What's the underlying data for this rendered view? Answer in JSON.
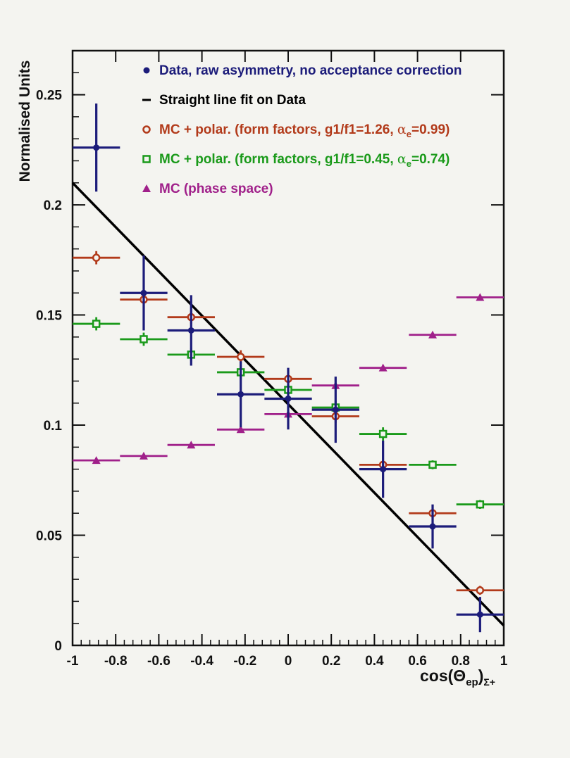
{
  "chart_data": {
    "type": "scatter",
    "title": "",
    "xlabel": "cos(Θ",
    "xlabel_sub": "ep",
    "xlabel_close": ")",
    "xlabel_sub2": "Σ+",
    "ylabel": "Normalised Units",
    "xlim": [
      -1,
      1
    ],
    "ylim": [
      0,
      0.27
    ],
    "x_ticks": [
      -1,
      -0.8,
      -0.6,
      -0.4,
      -0.2,
      0,
      0.2,
      0.4,
      0.6,
      0.8,
      1
    ],
    "x_tick_labels": [
      "-1",
      "-0.8",
      "-0.6",
      "-0.4",
      "-0.2",
      "0",
      "0.2",
      "0.4",
      "0.6",
      "0.8",
      "1"
    ],
    "y_ticks": [
      0,
      0.05,
      0.1,
      0.15,
      0.2,
      0.25
    ],
    "y_tick_labels": [
      "0",
      "0.05",
      "0.1",
      "0.15",
      "0.2",
      "0.25"
    ],
    "legend_position": "top-right",
    "legend": [
      {
        "marker": "dot",
        "color": "#1c1c7a",
        "text": "Data, raw asymmetry, no acceptance correction"
      },
      {
        "marker": "line",
        "color": "#000000",
        "text": "Straight line fit on Data"
      },
      {
        "marker": "circle",
        "color": "#b23a1a",
        "text_pre": "MC + polar. (form factors, g1/f1=1.26, ",
        "text_alpha": "α",
        "text_sub": "e",
        "text_post": "=0.99)"
      },
      {
        "marker": "square",
        "color": "#1a9a1a",
        "text_pre": "MC + polar. (form factors, g1/f1=0.45, ",
        "text_alpha": "α",
        "text_sub": "e",
        "text_post": "=0.74)"
      },
      {
        "marker": "triangle",
        "color": "#a0208a",
        "text": "MC (phase space)"
      }
    ],
    "series": [
      {
        "name": "Data, raw asymmetry, no acceptance correction",
        "color": "#1c1c7a",
        "marker": "dot",
        "x": [
          -0.89,
          -0.67,
          -0.45,
          -0.22,
          0.0,
          0.22,
          0.44,
          0.67,
          0.89
        ],
        "xerr": 0.11,
        "y": [
          0.226,
          0.16,
          0.143,
          0.114,
          0.112,
          0.107,
          0.08,
          0.054,
          0.014
        ],
        "yerr": [
          0.02,
          0.017,
          0.016,
          0.015,
          0.014,
          0.015,
          0.013,
          0.01,
          0.008
        ]
      },
      {
        "name": "MC + polar. (form factors, g1/f1=1.26, αe=0.99)",
        "color": "#b23a1a",
        "marker": "circle",
        "x": [
          -0.89,
          -0.67,
          -0.45,
          -0.22,
          0.0,
          0.22,
          0.44,
          0.67,
          0.89
        ],
        "xerr": 0.11,
        "y": [
          0.176,
          0.157,
          0.149,
          0.131,
          0.121,
          0.104,
          0.082,
          0.06,
          0.025
        ],
        "yerr": [
          0.003,
          0.003,
          0.003,
          0.003,
          0.003,
          0.003,
          0.002,
          0.002,
          0.002
        ]
      },
      {
        "name": "MC + polar. (form factors, g1/f1=0.45, αe=0.74)",
        "color": "#1a9a1a",
        "marker": "square",
        "x": [
          -0.89,
          -0.67,
          -0.45,
          -0.22,
          0.0,
          0.22,
          0.44,
          0.67,
          0.89
        ],
        "xerr": 0.11,
        "y": [
          0.146,
          0.139,
          0.132,
          0.124,
          0.116,
          0.108,
          0.096,
          0.082,
          0.064
        ],
        "yerr": [
          0.003,
          0.003,
          0.003,
          0.003,
          0.003,
          0.003,
          0.003,
          0.002,
          0.002
        ]
      },
      {
        "name": "MC (phase space)",
        "color": "#a0208a",
        "marker": "triangle",
        "x": [
          -0.89,
          -0.67,
          -0.45,
          -0.22,
          0.0,
          0.22,
          0.44,
          0.67,
          0.89
        ],
        "xerr": 0.11,
        "y": [
          0.084,
          0.086,
          0.091,
          0.098,
          0.105,
          0.118,
          0.126,
          0.141,
          0.158
        ],
        "yerr": [
          0.001,
          0.001,
          0.001,
          0.001,
          0.001,
          0.001,
          0.001,
          0.001,
          0.001
        ]
      }
    ],
    "fit_line": {
      "name": "Straight line fit on Data",
      "color": "#000000",
      "x": [
        -1,
        1
      ],
      "y": [
        0.21,
        0.009
      ]
    }
  }
}
